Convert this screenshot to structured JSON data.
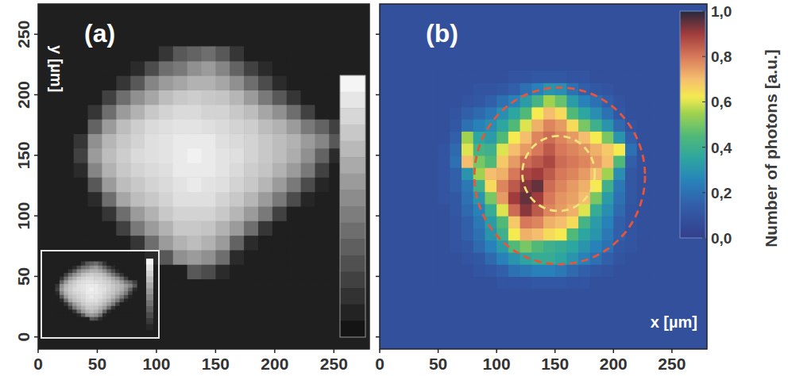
{
  "chart_data": [
    {
      "type": "heatmap",
      "panel_label": "(a)",
      "ylabel": "y [µm]",
      "color": "gray",
      "xlim": [
        0,
        280
      ],
      "ylim": [
        -10,
        275
      ],
      "xticks": [
        0,
        50,
        100,
        150,
        200,
        250
      ],
      "yticks": [
        0,
        50,
        100,
        150,
        200,
        250
      ],
      "cells": {
        "x_bins": [
          30,
          42,
          54,
          66,
          78,
          90,
          102,
          114,
          126,
          138,
          150,
          162,
          174,
          186,
          198,
          210,
          222,
          234,
          246,
          258
        ],
        "y_bins": [
          48,
          60,
          72,
          84,
          96,
          108,
          120,
          132,
          144,
          156,
          168,
          180,
          192,
          204,
          216,
          228,
          240
        ],
        "background": 0.05,
        "values": [
          [
            0.05,
            0.05,
            0.05,
            0.05,
            0.05,
            0.05,
            0.05,
            0.05,
            0.3,
            0.25,
            0.1,
            0.05,
            0.05,
            0.05,
            0.05,
            0.05,
            0.05,
            0.05,
            0.05
          ],
          [
            0.05,
            0.05,
            0.05,
            0.05,
            0.05,
            0.1,
            0.3,
            0.55,
            0.6,
            0.55,
            0.4,
            0.1,
            0.05,
            0.05,
            0.05,
            0.05,
            0.05,
            0.05,
            0.05
          ],
          [
            0.05,
            0.05,
            0.05,
            0.05,
            0.15,
            0.4,
            0.6,
            0.7,
            0.75,
            0.7,
            0.6,
            0.35,
            0.1,
            0.05,
            0.05,
            0.05,
            0.05,
            0.05,
            0.05
          ],
          [
            0.05,
            0.05,
            0.05,
            0.2,
            0.45,
            0.6,
            0.7,
            0.8,
            0.8,
            0.78,
            0.7,
            0.6,
            0.4,
            0.15,
            0.05,
            0.05,
            0.05,
            0.05,
            0.05
          ],
          [
            0.05,
            0.05,
            0.15,
            0.4,
            0.6,
            0.7,
            0.8,
            0.85,
            0.85,
            0.85,
            0.8,
            0.72,
            0.6,
            0.45,
            0.2,
            0.05,
            0.05,
            0.05,
            0.05
          ],
          [
            0.05,
            0.1,
            0.4,
            0.65,
            0.75,
            0.8,
            0.85,
            0.9,
            0.9,
            0.9,
            0.85,
            0.8,
            0.72,
            0.6,
            0.45,
            0.25,
            0.08,
            0.05,
            0.05
          ],
          [
            0.05,
            0.3,
            0.6,
            0.75,
            0.8,
            0.85,
            0.88,
            0.92,
            0.95,
            0.92,
            0.9,
            0.85,
            0.8,
            0.72,
            0.6,
            0.45,
            0.25,
            0.08,
            0.05
          ],
          [
            0.1,
            0.5,
            0.7,
            0.8,
            0.85,
            0.88,
            0.9,
            0.95,
            0.95,
            0.95,
            0.92,
            0.88,
            0.82,
            0.78,
            0.7,
            0.6,
            0.45,
            0.2,
            0.05
          ],
          [
            0.2,
            0.6,
            0.75,
            0.82,
            0.88,
            0.9,
            0.92,
            0.95,
            0.98,
            0.95,
            0.92,
            0.9,
            0.85,
            0.8,
            0.75,
            0.68,
            0.55,
            0.35,
            0.1
          ],
          [
            0.15,
            0.55,
            0.72,
            0.8,
            0.85,
            0.9,
            0.92,
            0.95,
            0.95,
            0.95,
            0.9,
            0.88,
            0.85,
            0.8,
            0.75,
            0.7,
            0.6,
            0.5,
            0.3
          ],
          [
            0.05,
            0.35,
            0.6,
            0.75,
            0.82,
            0.88,
            0.9,
            0.92,
            0.92,
            0.9,
            0.88,
            0.85,
            0.82,
            0.75,
            0.7,
            0.6,
            0.45,
            0.35,
            0.2
          ],
          [
            0.05,
            0.15,
            0.4,
            0.6,
            0.7,
            0.8,
            0.85,
            0.88,
            0.88,
            0.85,
            0.85,
            0.8,
            0.75,
            0.65,
            0.55,
            0.4,
            0.2,
            0.05,
            0.05
          ],
          [
            0.05,
            0.05,
            0.2,
            0.4,
            0.55,
            0.65,
            0.75,
            0.8,
            0.82,
            0.8,
            0.78,
            0.72,
            0.6,
            0.45,
            0.3,
            0.15,
            0.05,
            0.05,
            0.05
          ],
          [
            0.05,
            0.05,
            0.05,
            0.15,
            0.3,
            0.5,
            0.6,
            0.65,
            0.7,
            0.7,
            0.65,
            0.55,
            0.4,
            0.25,
            0.1,
            0.05,
            0.05,
            0.05,
            0.05
          ],
          [
            0.05,
            0.05,
            0.05,
            0.05,
            0.1,
            0.25,
            0.4,
            0.45,
            0.55,
            0.6,
            0.5,
            0.35,
            0.2,
            0.1,
            0.05,
            0.05,
            0.05,
            0.05,
            0.05
          ],
          [
            0.05,
            0.05,
            0.05,
            0.05,
            0.05,
            0.05,
            0.15,
            0.3,
            0.35,
            0.4,
            0.3,
            0.15,
            0.05,
            0.05,
            0.05,
            0.05,
            0.05,
            0.05,
            0.05
          ]
        ]
      },
      "colorbar": {
        "lim": [
          0,
          1
        ]
      }
    },
    {
      "type": "heatmap",
      "panel_label": "(b)",
      "xlabel": "x [µm]",
      "color": "rainbow",
      "tick_labels": "x",
      "xlim": [
        0,
        280
      ],
      "ylim": [
        -10,
        275
      ],
      "xticks": [
        0,
        50,
        100,
        150,
        200,
        250
      ],
      "yticks": [
        0,
        50,
        100,
        150,
        200,
        250
      ],
      "cells": {
        "x_bins": [
          50,
          60,
          70,
          80,
          90,
          100,
          110,
          120,
          130,
          140,
          150,
          160,
          170,
          180,
          190,
          200,
          210,
          220,
          230
        ],
        "y_bins": [
          40,
          50,
          60,
          70,
          80,
          90,
          100,
          110,
          120,
          130,
          140,
          150,
          160,
          170,
          180,
          190,
          200,
          210,
          220
        ],
        "background": 0.08,
        "values": [
          [
            0.08,
            0.08,
            0.08,
            0.08,
            0.08,
            0.1,
            0.1,
            0.1,
            0.12,
            0.12,
            0.12,
            0.1,
            0.1,
            0.08,
            0.08,
            0.08,
            0.08,
            0.08
          ],
          [
            0.08,
            0.08,
            0.08,
            0.1,
            0.12,
            0.15,
            0.2,
            0.22,
            0.25,
            0.25,
            0.22,
            0.18,
            0.15,
            0.12,
            0.1,
            0.08,
            0.08,
            0.08
          ],
          [
            0.08,
            0.08,
            0.1,
            0.12,
            0.18,
            0.25,
            0.3,
            0.35,
            0.38,
            0.38,
            0.35,
            0.3,
            0.25,
            0.2,
            0.15,
            0.1,
            0.08,
            0.08
          ],
          [
            0.08,
            0.1,
            0.12,
            0.18,
            0.25,
            0.32,
            0.45,
            0.5,
            0.45,
            0.4,
            0.38,
            0.35,
            0.3,
            0.25,
            0.2,
            0.12,
            0.1,
            0.08
          ],
          [
            0.08,
            0.1,
            0.15,
            0.2,
            0.3,
            0.4,
            0.62,
            0.72,
            0.7,
            0.65,
            0.62,
            0.45,
            0.35,
            0.3,
            0.22,
            0.15,
            0.1,
            0.08
          ],
          [
            0.08,
            0.1,
            0.15,
            0.22,
            0.32,
            0.45,
            0.68,
            0.8,
            0.78,
            0.72,
            0.7,
            0.65,
            0.42,
            0.32,
            0.25,
            0.15,
            0.1,
            0.08
          ],
          [
            0.08,
            0.12,
            0.18,
            0.25,
            0.38,
            0.6,
            0.82,
            0.92,
            0.85,
            0.78,
            0.75,
            0.72,
            0.6,
            0.38,
            0.28,
            0.18,
            0.1,
            0.08
          ],
          [
            0.1,
            0.12,
            0.2,
            0.3,
            0.5,
            0.75,
            0.9,
            0.95,
            0.9,
            0.8,
            0.76,
            0.74,
            0.7,
            0.5,
            0.32,
            0.2,
            0.12,
            0.08
          ],
          [
            0.1,
            0.15,
            0.22,
            0.4,
            0.65,
            0.78,
            0.85,
            0.92,
            0.95,
            0.82,
            0.78,
            0.75,
            0.72,
            0.62,
            0.4,
            0.22,
            0.12,
            0.08
          ],
          [
            0.1,
            0.15,
            0.3,
            0.55,
            0.7,
            0.72,
            0.8,
            0.88,
            0.9,
            0.85,
            0.8,
            0.78,
            0.75,
            0.7,
            0.55,
            0.28,
            0.12,
            0.08
          ],
          [
            0.1,
            0.2,
            0.7,
            0.5,
            0.45,
            0.68,
            0.75,
            0.82,
            0.85,
            0.88,
            0.82,
            0.8,
            0.78,
            0.75,
            0.7,
            0.45,
            0.15,
            0.08
          ],
          [
            0.1,
            0.18,
            0.6,
            0.42,
            0.4,
            0.6,
            0.7,
            0.75,
            0.8,
            0.85,
            0.8,
            0.78,
            0.76,
            0.72,
            0.68,
            0.62,
            0.2,
            0.08
          ],
          [
            0.08,
            0.15,
            0.55,
            0.35,
            0.32,
            0.45,
            0.62,
            0.7,
            0.78,
            0.82,
            0.78,
            0.75,
            0.7,
            0.62,
            0.5,
            0.3,
            0.15,
            0.08
          ],
          [
            0.08,
            0.12,
            0.2,
            0.25,
            0.28,
            0.35,
            0.45,
            0.6,
            0.72,
            0.78,
            0.75,
            0.65,
            0.5,
            0.4,
            0.3,
            0.18,
            0.1,
            0.08
          ],
          [
            0.08,
            0.1,
            0.15,
            0.18,
            0.22,
            0.28,
            0.35,
            0.45,
            0.62,
            0.7,
            0.65,
            0.45,
            0.35,
            0.28,
            0.2,
            0.12,
            0.08,
            0.08
          ],
          [
            0.08,
            0.08,
            0.1,
            0.12,
            0.15,
            0.2,
            0.25,
            0.32,
            0.42,
            0.55,
            0.48,
            0.32,
            0.25,
            0.2,
            0.15,
            0.1,
            0.08,
            0.08
          ],
          [
            0.08,
            0.08,
            0.08,
            0.1,
            0.1,
            0.12,
            0.15,
            0.2,
            0.25,
            0.3,
            0.28,
            0.2,
            0.15,
            0.12,
            0.1,
            0.08,
            0.08,
            0.08
          ],
          [
            0.08,
            0.08,
            0.08,
            0.08,
            0.08,
            0.08,
            0.1,
            0.1,
            0.12,
            0.12,
            0.12,
            0.1,
            0.1,
            0.08,
            0.08,
            0.08,
            0.08,
            0.08
          ]
        ]
      },
      "circles": [
        {
          "cx": 154,
          "cy": 133,
          "r": 73,
          "color": "#e8553a"
        },
        {
          "cx": 153,
          "cy": 135,
          "r": 31,
          "color": "#f2e27a"
        }
      ],
      "line_style": "dashed",
      "colorbar": {
        "lim": [
          0,
          1.0
        ],
        "label": "Number of photons [a.u.]",
        "ticks": [
          {
            "value": 1.0,
            "label": "1,0"
          },
          {
            "value": 0.8,
            "label": "0,8"
          },
          {
            "value": 0.6,
            "label": "0,6"
          },
          {
            "value": 0.4,
            "label": "0,4"
          },
          {
            "value": 0.2,
            "label": "0,2"
          },
          {
            "value": 0,
            "label": "0,0"
          }
        ]
      }
    }
  ]
}
